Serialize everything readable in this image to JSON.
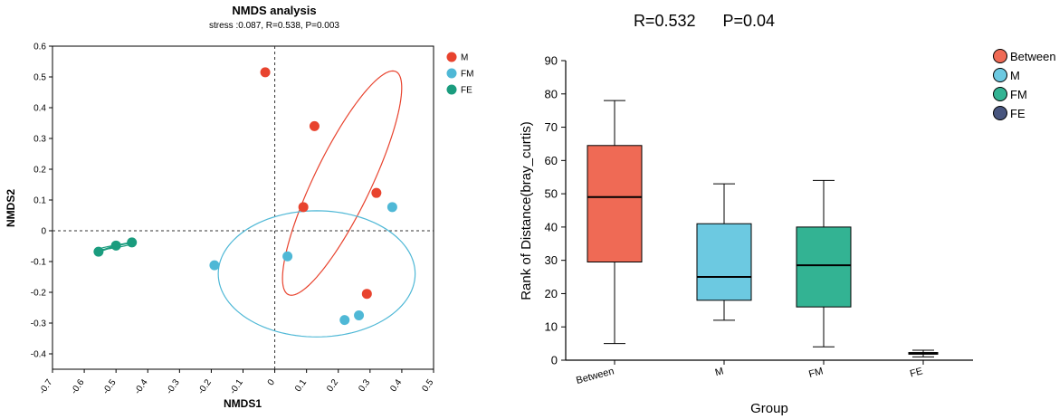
{
  "chart_data": [
    {
      "type": "scatter",
      "title": "NMDS analysis",
      "subtitle": "stress :0.087, R=0.538, P=0.003",
      "xlabel": "NMDS1",
      "ylabel": "NMDS2",
      "xlim": [
        -0.7,
        0.5
      ],
      "ylim": [
        -0.45,
        0.6
      ],
      "xticks": [
        -0.7,
        -0.6,
        -0.5,
        -0.4,
        -0.3,
        -0.2,
        -0.1,
        0,
        0.1,
        0.2,
        0.3,
        0.4,
        0.5
      ],
      "xtick_labels": [
        "-0.7",
        "-0.6",
        "-0.5",
        "-0.4",
        "-0.3",
        "-0.2",
        "-0.1",
        "0",
        "0.1",
        "0.2",
        "0.3",
        "0.4",
        "0.5"
      ],
      "yticks": [
        -0.4,
        -0.3,
        -0.2,
        -0.1,
        0,
        0.1,
        0.2,
        0.3,
        0.4,
        0.5,
        0.6
      ],
      "ytick_labels": [
        "-0.4",
        "-0.3",
        "-0.2",
        "-0.1",
        "0",
        "0.1",
        "0.2",
        "0.3",
        "0.4",
        "0.5",
        "0.6"
      ],
      "legend_position": "top-right outside",
      "series": [
        {
          "name": "M",
          "color": "#e8432e",
          "points": [
            [
              -0.03,
              0.515
            ],
            [
              0.125,
              0.34
            ],
            [
              0.32,
              0.123
            ],
            [
              0.09,
              0.077
            ],
            [
              0.29,
              -0.205
            ]
          ],
          "ellipse": {
            "cx": 0.212,
            "cy": 0.155,
            "rx": 0.4,
            "ry": 0.09,
            "angle_deg": 65
          }
        },
        {
          "name": "FM",
          "color": "#4fb8d6",
          "points": [
            [
              0.37,
              0.077
            ],
            [
              0.04,
              -0.083
            ],
            [
              -0.19,
              -0.112
            ],
            [
              0.22,
              -0.29
            ],
            [
              0.265,
              -0.275
            ]
          ],
          "ellipse": {
            "cx": 0.132,
            "cy": -0.14,
            "rx": 0.31,
            "ry": 0.205,
            "angle_deg": 0
          }
        },
        {
          "name": "FE",
          "color": "#1a9c7e",
          "points": [
            [
              -0.555,
              -0.068
            ],
            [
              -0.5,
              -0.048
            ],
            [
              -0.45,
              -0.038
            ]
          ],
          "ellipse": {
            "cx": -0.502,
            "cy": -0.051,
            "rx": 0.055,
            "ry": 0.004,
            "angle_deg": 10
          }
        }
      ]
    },
    {
      "type": "boxplot",
      "title": "R=0.532      P=0.04",
      "xlabel": "Group",
      "ylabel": "Rank of Distance(bray_curtis)",
      "ylim": [
        0,
        90
      ],
      "yticks": [
        0,
        10,
        20,
        30,
        40,
        50,
        60,
        70,
        80,
        90
      ],
      "ytick_labels": [
        "0",
        "10",
        "20",
        "30",
        "40",
        "50",
        "60",
        "70",
        "80",
        "90"
      ],
      "categories": [
        "Between",
        "M",
        "FM",
        "FE"
      ],
      "legend_position": "top-right outside",
      "boxes": [
        {
          "name": "Between",
          "color": "#ef6a55",
          "min": 5,
          "q1": 29.5,
          "median": 49,
          "q3": 64.5,
          "max": 78
        },
        {
          "name": "M",
          "color": "#6cc9e1",
          "min": 12,
          "q1": 18,
          "median": 25,
          "q3": 41,
          "max": 53
        },
        {
          "name": "FM",
          "color": "#33b393",
          "min": 4,
          "q1": 16,
          "median": 28.5,
          "q3": 40,
          "max": 54
        },
        {
          "name": "FE",
          "color": "#48557e",
          "min": 1,
          "q1": 1.8,
          "median": 2,
          "q3": 2.3,
          "max": 3
        }
      ]
    }
  ]
}
